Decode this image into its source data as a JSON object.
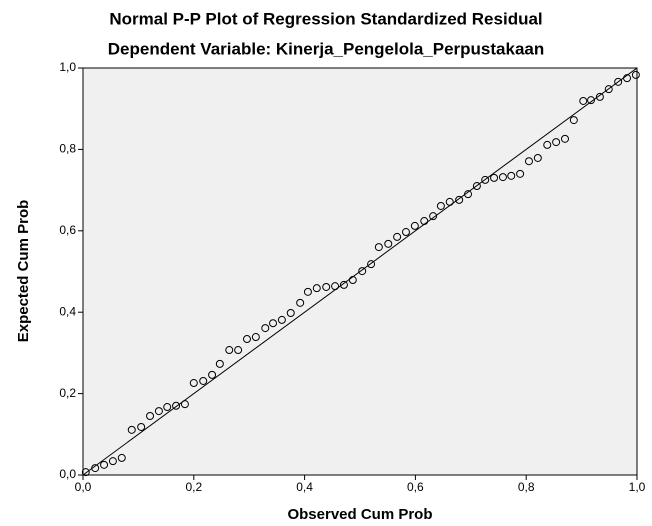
{
  "chart_data": {
    "type": "scatter",
    "title": "Normal P-P Plot of Regression Standardized Residual",
    "subtitle": "Dependent Variable: Kinerja_Pengelola_Perpustakaan",
    "x_label": "Observed Cum Prob",
    "y_label": "Expected Cum Prob",
    "color": "#000000",
    "xlim": [
      0,
      1
    ],
    "ylim": [
      0,
      1
    ],
    "xticks": [
      {
        "value": 0,
        "label": "0,0"
      },
      {
        "value": 0.2,
        "label": "0,2"
      },
      {
        "value": 0.4,
        "label": "0,4"
      },
      {
        "value": 0.6,
        "label": "0,6"
      },
      {
        "value": 0.8,
        "label": "0,8"
      },
      {
        "value": 1,
        "label": "1,0"
      }
    ],
    "yticks": [
      {
        "value": 0,
        "label": "0,0"
      },
      {
        "value": 0.2,
        "label": "0,2"
      },
      {
        "value": 0.4,
        "label": "0,4"
      },
      {
        "value": 0.6,
        "label": "0,6"
      },
      {
        "value": 0.8,
        "label": "0,8"
      },
      {
        "value": 1,
        "label": "1,0"
      }
    ],
    "x": [
      0.005,
      0.022,
      0.038,
      0.054,
      0.07,
      0.088,
      0.105,
      0.121,
      0.137,
      0.152,
      0.168,
      0.184,
      0.2,
      0.217,
      0.233,
      0.247,
      0.264,
      0.28,
      0.296,
      0.312,
      0.329,
      0.343,
      0.359,
      0.375,
      0.392,
      0.406,
      0.422,
      0.439,
      0.455,
      0.471,
      0.487,
      0.504,
      0.52,
      0.534,
      0.551,
      0.567,
      0.583,
      0.599,
      0.616,
      0.632,
      0.646,
      0.662,
      0.679,
      0.695,
      0.711,
      0.726,
      0.742,
      0.758,
      0.773,
      0.789,
      0.805,
      0.821,
      0.838,
      0.854,
      0.87,
      0.886,
      0.903,
      0.917,
      0.933,
      0.949,
      0.966,
      0.982,
      0.998
    ],
    "values": [
      0.007,
      0.017,
      0.025,
      0.034,
      0.042,
      0.111,
      0.118,
      0.145,
      0.157,
      0.167,
      0.17,
      0.174,
      0.226,
      0.231,
      0.246,
      0.273,
      0.307,
      0.307,
      0.334,
      0.339,
      0.361,
      0.373,
      0.381,
      0.398,
      0.423,
      0.45,
      0.459,
      0.462,
      0.464,
      0.467,
      0.479,
      0.501,
      0.518,
      0.56,
      0.568,
      0.585,
      0.597,
      0.612,
      0.624,
      0.636,
      0.661,
      0.671,
      0.676,
      0.69,
      0.71,
      0.725,
      0.73,
      0.732,
      0.735,
      0.74,
      0.771,
      0.779,
      0.811,
      0.818,
      0.826,
      0.872,
      0.919,
      0.921,
      0.929,
      0.948,
      0.966,
      0.975,
      0.983
    ]
  }
}
